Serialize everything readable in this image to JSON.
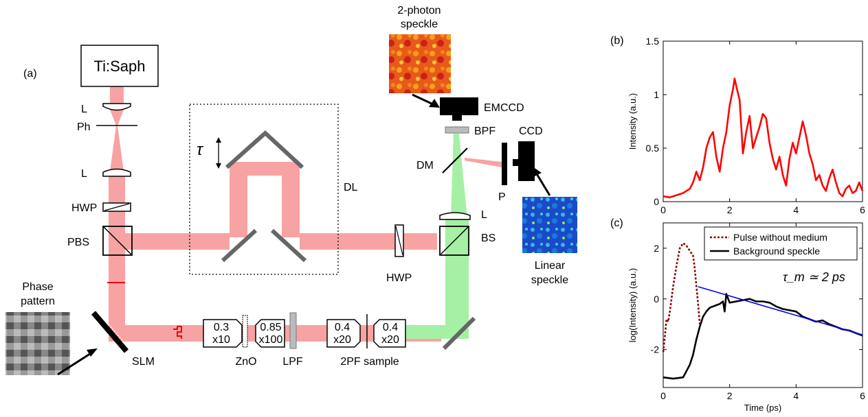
{
  "diagram": {
    "panel_label": "(a)",
    "laser": "Ti:Saph",
    "lens": "L",
    "pinhole": "Ph",
    "hwp": "HWP",
    "pbs": "PBS",
    "tau": "τ",
    "delay_line": "DL",
    "hwp2": "HWP",
    "bs": "BS",
    "lens2": "L",
    "dm": "DM",
    "bpf": "BPF",
    "emccd": "EMCCD",
    "ccd": "CCD",
    "polarizer": "P",
    "two_photon_1": "2-photon",
    "two_photon_2": "speckle",
    "linear_1": "Linear",
    "linear_2": "speckle",
    "phase_1": "Phase",
    "phase_2": "pattern",
    "slm": "SLM",
    "obj1_na": "0.3",
    "obj1_mag": "x10",
    "zno": "ZnO",
    "obj2_na": "0.85",
    "obj2_mag": "x100",
    "lpf": "LPF",
    "obj3_na": "0.4",
    "obj3_mag": "x20",
    "obj4_na": "0.4",
    "obj4_mag": "x20",
    "sample": "2PF sample",
    "colors": {
      "beam_red": "#f7a3a3",
      "beam_green": "#a5f0a5",
      "mirror": "#666666",
      "dark": "#000000"
    }
  },
  "chart_data": [
    {
      "type": "line",
      "panel_label": "(b)",
      "title": "",
      "xlabel": "",
      "ylabel": "Intensity (a.u.)",
      "xlim": [
        0,
        6
      ],
      "ylim": [
        0,
        1.5
      ],
      "xticks": [
        "0",
        "2",
        "4",
        "6"
      ],
      "yticks": [
        "0",
        "0.5",
        "1",
        "1.5"
      ],
      "series": [
        {
          "color": "#ff0000",
          "x": [
            0,
            0.2,
            0.4,
            0.6,
            0.8,
            0.9,
            1.0,
            1.1,
            1.2,
            1.3,
            1.4,
            1.5,
            1.6,
            1.7,
            1.8,
            1.9,
            2.0,
            2.1,
            2.15,
            2.2,
            2.3,
            2.4,
            2.5,
            2.6,
            2.7,
            2.8,
            2.9,
            3.0,
            3.1,
            3.2,
            3.3,
            3.4,
            3.5,
            3.6,
            3.7,
            3.8,
            3.9,
            4.0,
            4.1,
            4.2,
            4.3,
            4.4,
            4.5,
            4.6,
            4.7,
            4.8,
            4.9,
            5.0,
            5.1,
            5.2,
            5.3,
            5.4,
            5.5,
            5.6,
            5.7,
            5.8,
            5.9,
            6.0
          ],
          "y": [
            0.05,
            0.04,
            0.06,
            0.08,
            0.12,
            0.18,
            0.28,
            0.2,
            0.32,
            0.5,
            0.6,
            0.65,
            0.42,
            0.28,
            0.5,
            0.65,
            0.9,
            1.05,
            1.15,
            1.08,
            0.95,
            0.45,
            0.65,
            0.8,
            0.5,
            0.6,
            0.7,
            0.82,
            0.78,
            0.55,
            0.4,
            0.3,
            0.42,
            0.25,
            0.15,
            0.4,
            0.55,
            0.45,
            0.6,
            0.75,
            0.62,
            0.45,
            0.35,
            0.2,
            0.25,
            0.15,
            0.1,
            0.22,
            0.3,
            0.18,
            0.08,
            0.05,
            0.12,
            0.15,
            0.08,
            0.1,
            0.18,
            0.1
          ]
        }
      ]
    },
    {
      "type": "line",
      "panel_label": "(c)",
      "title": "",
      "xlabel": "Time (ps)",
      "ylabel": "log(Intensity) (a.u.)",
      "xlim": [
        0,
        6
      ],
      "ylim": [
        -3.5,
        3
      ],
      "xticks": [
        "0",
        "2",
        "4",
        "6"
      ],
      "yticks": [
        "-2",
        "0",
        "2"
      ],
      "annotation": "τ_m ≃ 2 ps",
      "legend": [
        "Pulse without medium",
        "Background speckle"
      ],
      "series": [
        {
          "name": "Pulse without medium",
          "color": "#8b0000",
          "dashed": true,
          "x": [
            0,
            0.05,
            0.1,
            0.15,
            0.2,
            0.3,
            0.4,
            0.5,
            0.6,
            0.7,
            0.8,
            0.9,
            0.95,
            1.0,
            1.05,
            1.1
          ],
          "y": [
            -2.1,
            -1.5,
            -0.8,
            -0.9,
            -0.5,
            0.5,
            1.3,
            2.0,
            2.2,
            2.1,
            1.9,
            1.7,
            1.2,
            0.5,
            -0.2,
            -1.0
          ]
        },
        {
          "name": "Background speckle",
          "color": "#000000",
          "x": [
            0,
            0.3,
            0.6,
            0.8,
            0.9,
            1.0,
            1.1,
            1.2,
            1.3,
            1.4,
            1.5,
            1.6,
            1.7,
            1.8,
            1.85,
            1.9,
            2.0,
            2.2,
            2.4,
            2.6,
            2.8,
            3.0,
            3.2,
            3.4,
            3.6,
            3.8,
            4.0,
            4.2,
            4.4,
            4.6,
            4.8,
            5.0,
            5.2,
            5.4,
            5.6,
            5.8,
            6.0
          ],
          "y": [
            -3.1,
            -3.15,
            -3.1,
            -2.6,
            -2.2,
            -1.6,
            -1.1,
            -0.7,
            -0.5,
            -0.35,
            -0.3,
            -0.25,
            -0.2,
            -0.1,
            -0.5,
            0.2,
            -0.15,
            -0.1,
            -0.05,
            0.0,
            -0.1,
            -0.1,
            -0.15,
            -0.3,
            -0.4,
            -0.45,
            -0.5,
            -0.7,
            -0.8,
            -0.9,
            -0.85,
            -1.0,
            -1.1,
            -1.2,
            -1.25,
            -1.35,
            -1.45
          ]
        },
        {
          "name": "",
          "color": "#0000ff",
          "x": [
            1.05,
            6.0
          ],
          "y": [
            0.48,
            -1.42
          ]
        }
      ]
    }
  ]
}
